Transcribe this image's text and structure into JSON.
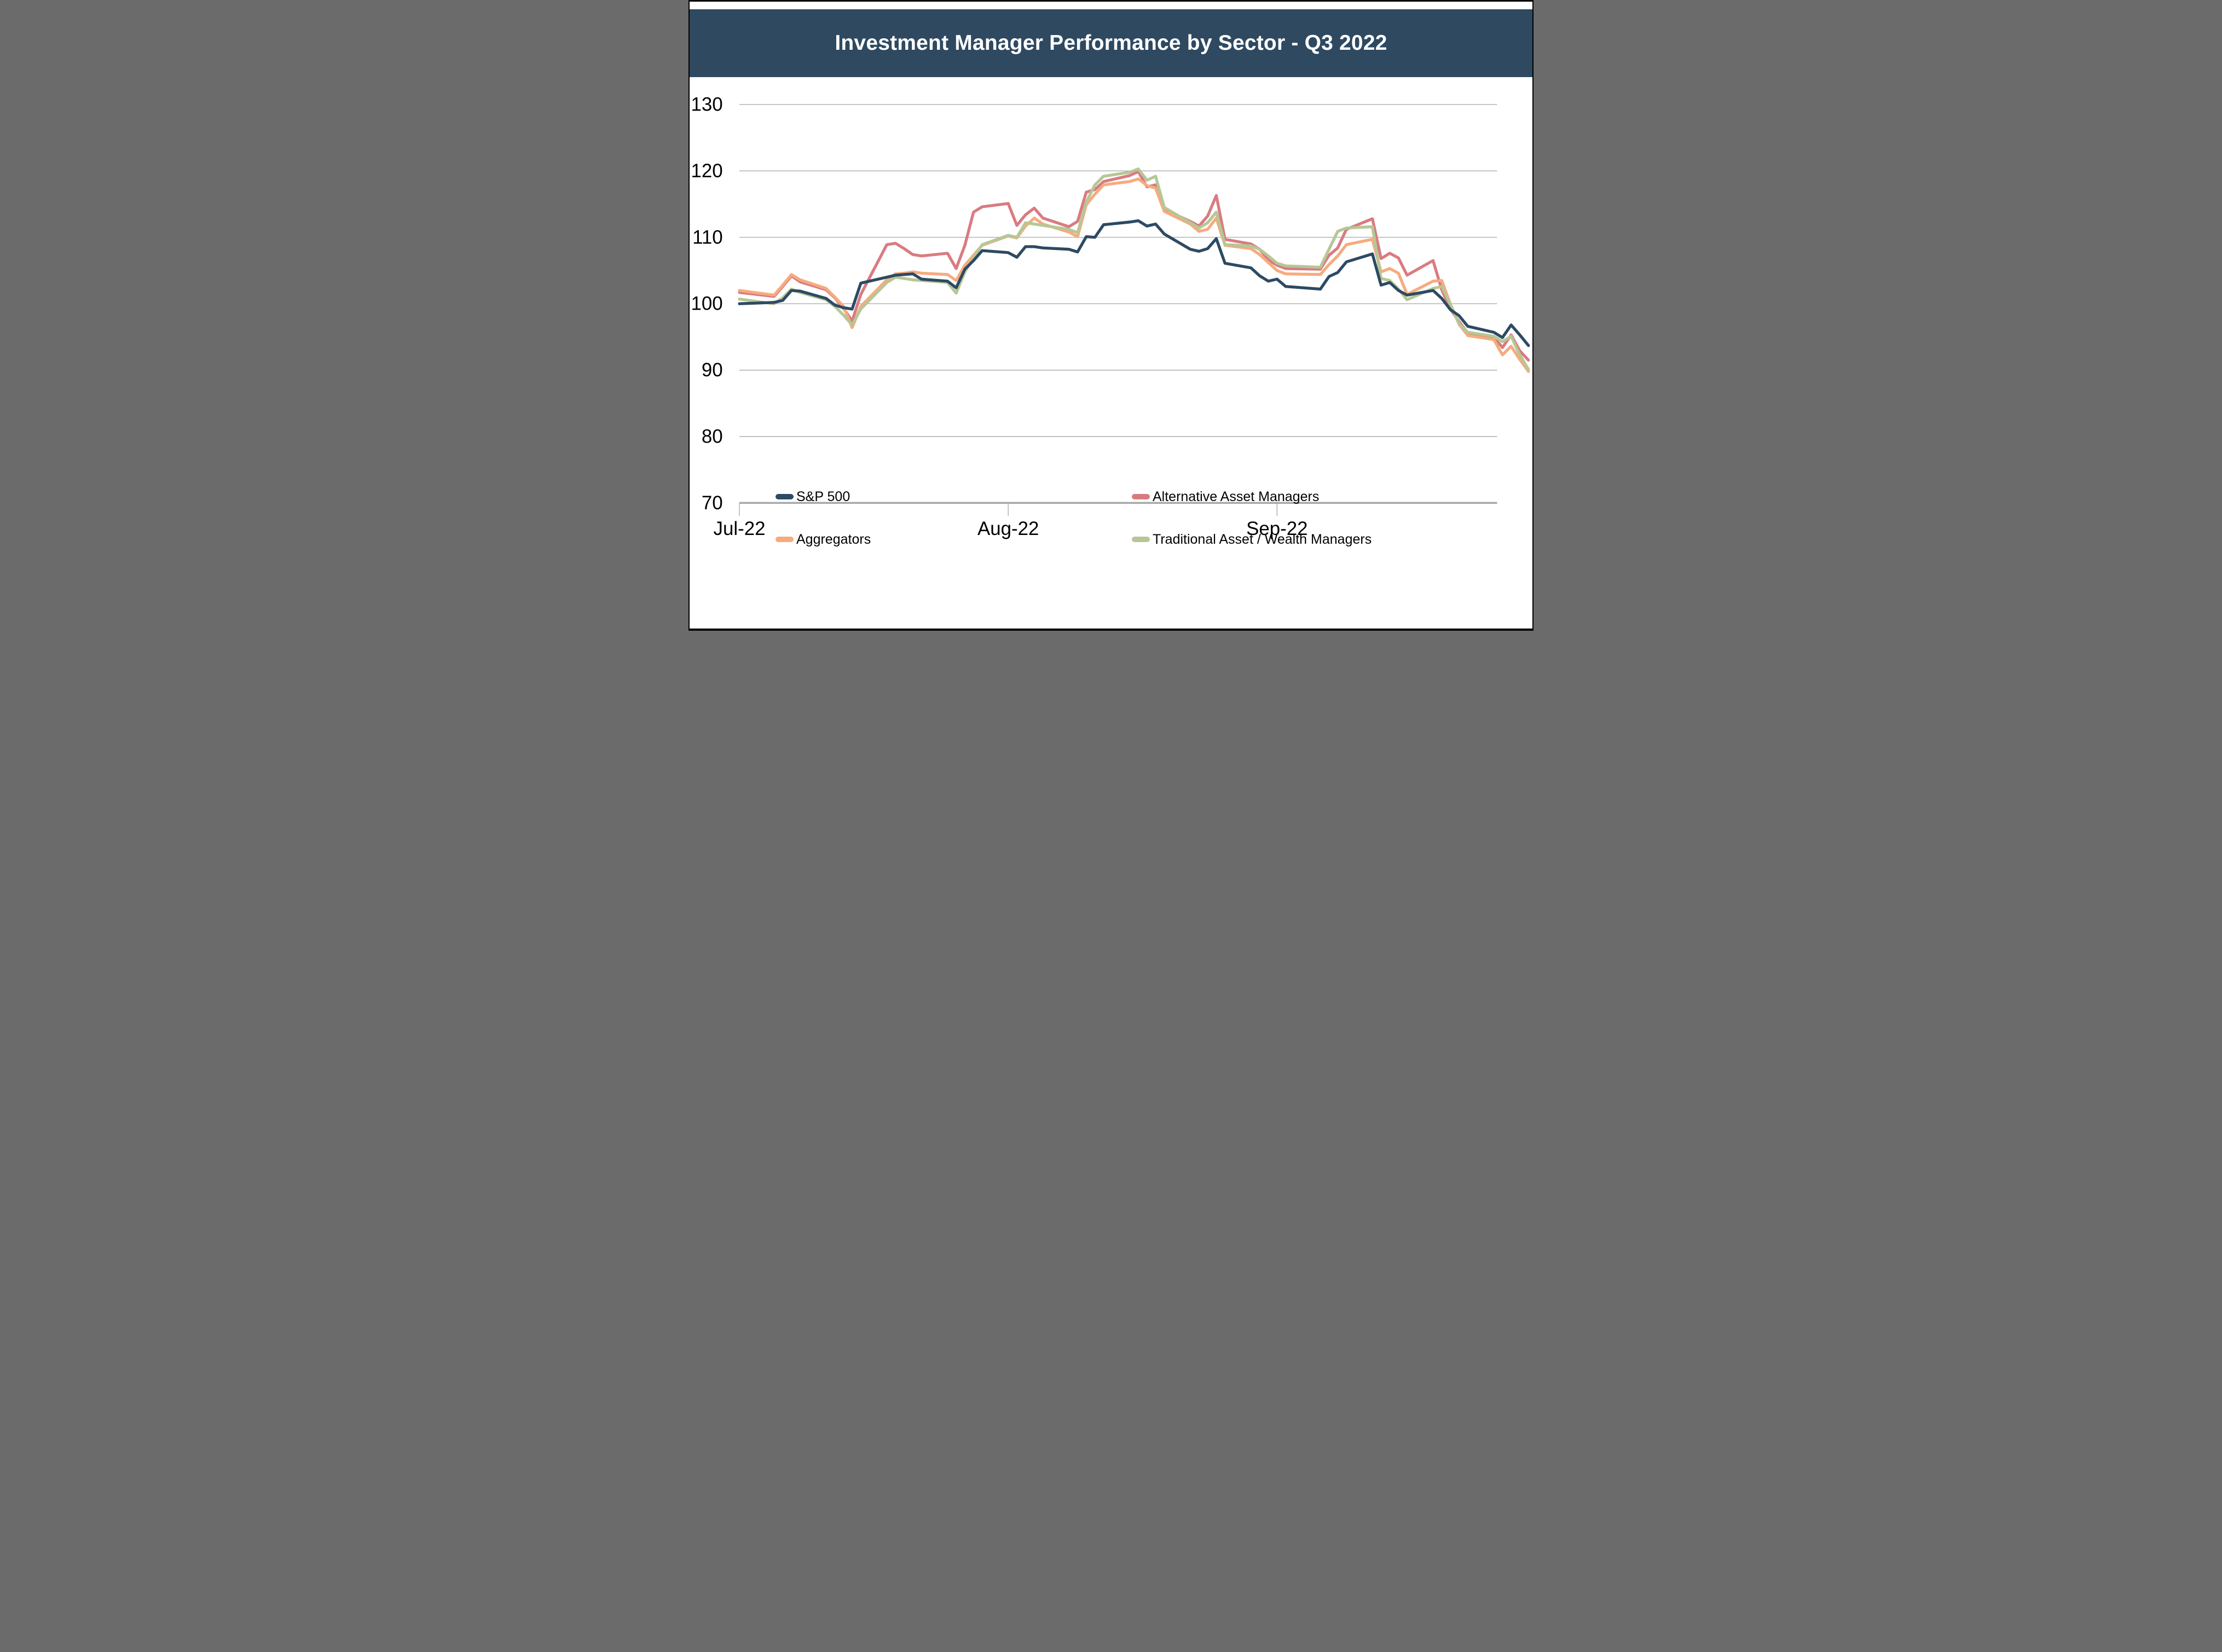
{
  "header": {
    "title": "Investment Manager Performance by Sector - Q3 2022",
    "bg_color": "#2e4960",
    "text_color": "#ffffff"
  },
  "chart_data": {
    "type": "line",
    "title": "Investment Manager Performance by Sector - Q3 2022",
    "xlabel": "",
    "ylabel": "",
    "ylim": [
      70,
      130
    ],
    "y_ticks": [
      130,
      120,
      110,
      100,
      90,
      80,
      70
    ],
    "x_ticks": [
      {
        "label": "Jul-22",
        "date": "Jul-01"
      },
      {
        "label": "Aug-22",
        "date": "Aug-01"
      },
      {
        "label": "Sep-22",
        "date": "Sep-01"
      }
    ],
    "grid": true,
    "grid_color": "#9b9b9b",
    "axis_color": "#a8a8a8",
    "label_color": "#000000",
    "legend_position": "bottom",
    "x": [
      "Jul-01",
      "Jul-05",
      "Jul-06",
      "Jul-07",
      "Jul-08",
      "Jul-11",
      "Jul-12",
      "Jul-13",
      "Jul-14",
      "Jul-15",
      "Jul-18",
      "Jul-19",
      "Jul-20",
      "Jul-21",
      "Jul-22",
      "Jul-25",
      "Jul-26",
      "Jul-27",
      "Jul-28",
      "Jul-29",
      "Aug-01",
      "Aug-02",
      "Aug-03",
      "Aug-04",
      "Aug-05",
      "Aug-08",
      "Aug-09",
      "Aug-10",
      "Aug-11",
      "Aug-12",
      "Aug-15",
      "Aug-16",
      "Aug-17",
      "Aug-18",
      "Aug-19",
      "Aug-22",
      "Aug-23",
      "Aug-24",
      "Aug-25",
      "Aug-26",
      "Aug-29",
      "Aug-30",
      "Aug-31",
      "Sep-01",
      "Sep-02",
      "Sep-06",
      "Sep-07",
      "Sep-08",
      "Sep-09",
      "Sep-12",
      "Sep-13",
      "Sep-14",
      "Sep-15",
      "Sep-16",
      "Sep-19",
      "Sep-20",
      "Sep-21",
      "Sep-22",
      "Sep-23",
      "Sep-26",
      "Sep-27",
      "Sep-28",
      "Sep-29",
      "Sep-30"
    ],
    "series": [
      {
        "name": "S&P 500",
        "color": "#2d4a63",
        "values": [
          100.0,
          100.2,
          100.5,
          102.0,
          101.9,
          100.8,
          99.8,
          99.4,
          99.2,
          103.1,
          104.0,
          104.3,
          104.4,
          104.5,
          103.7,
          103.4,
          102.4,
          105.2,
          106.5,
          108.0,
          107.7,
          107.0,
          108.6,
          108.6,
          108.4,
          108.2,
          107.8,
          110.1,
          110.0,
          111.9,
          112.3,
          112.5,
          111.7,
          112.0,
          110.5,
          108.2,
          107.9,
          108.3,
          109.8,
          106.1,
          105.4,
          104.2,
          103.4,
          103.7,
          102.6,
          102.2,
          104.1,
          104.7,
          106.3,
          107.5,
          102.8,
          103.2,
          102.0,
          101.3,
          102.0,
          100.8,
          99.1,
          98.2,
          96.6,
          95.7,
          94.9,
          96.8,
          95.3,
          93.7
        ]
      },
      {
        "name": "Alternative Asset Managers",
        "color": "#d97b81",
        "values": [
          101.7,
          101.1,
          102.6,
          104.2,
          103.3,
          102.1,
          100.9,
          99.3,
          97.4,
          101.4,
          108.9,
          109.1,
          108.3,
          107.4,
          107.2,
          107.6,
          105.3,
          108.8,
          113.8,
          114.6,
          115.1,
          111.8,
          113.4,
          114.4,
          112.9,
          111.6,
          112.4,
          116.8,
          117.2,
          118.4,
          119.3,
          119.9,
          117.6,
          117.9,
          114.2,
          112.4,
          111.7,
          113.2,
          116.3,
          109.7,
          109.0,
          108.2,
          106.6,
          105.8,
          105.3,
          105.2,
          107.3,
          108.4,
          111.2,
          112.8,
          106.8,
          107.6,
          106.9,
          104.3,
          106.5,
          102.1,
          99.2,
          97.3,
          95.6,
          95.0,
          93.4,
          95.3,
          92.9,
          91.5
        ]
      },
      {
        "name": "Aggregators",
        "color": "#f6ab7e",
        "values": [
          102.0,
          101.3,
          102.8,
          104.4,
          103.6,
          102.3,
          101.0,
          99.6,
          96.4,
          99.6,
          103.6,
          104.5,
          104.6,
          104.8,
          104.6,
          104.4,
          103.5,
          105.8,
          107.3,
          108.8,
          110.2,
          109.9,
          111.7,
          112.9,
          112.0,
          110.8,
          110.1,
          114.9,
          116.5,
          117.9,
          118.4,
          118.8,
          117.8,
          117.4,
          113.9,
          112.0,
          110.9,
          111.2,
          112.9,
          108.8,
          108.3,
          107.4,
          106.2,
          105.0,
          104.5,
          104.4,
          105.9,
          107.2,
          108.9,
          109.7,
          104.8,
          105.3,
          104.6,
          101.4,
          103.4,
          103.5,
          99.9,
          96.9,
          95.2,
          94.6,
          92.3,
          93.6,
          91.6,
          89.8
        ]
      },
      {
        "name": "Traditional Asset / Wealth Managers",
        "color": "#b6c795",
        "values": [
          100.7,
          100.0,
          100.9,
          102.2,
          101.7,
          100.6,
          99.6,
          98.3,
          96.8,
          99.2,
          103.2,
          104.0,
          103.8,
          103.6,
          103.5,
          103.2,
          101.6,
          104.8,
          106.9,
          108.9,
          110.3,
          110.0,
          112.2,
          112.0,
          111.8,
          111.2,
          110.7,
          115.3,
          117.9,
          119.2,
          119.8,
          120.3,
          118.6,
          119.2,
          114.5,
          112.2,
          111.4,
          112.2,
          113.8,
          108.9,
          108.7,
          108.2,
          107.2,
          106.1,
          105.7,
          105.5,
          108.2,
          110.9,
          111.4,
          111.6,
          103.8,
          103.5,
          102.2,
          100.6,
          102.3,
          102.6,
          99.9,
          97.0,
          95.7,
          95.1,
          94.3,
          95.1,
          92.3,
          90.1
        ]
      }
    ]
  }
}
